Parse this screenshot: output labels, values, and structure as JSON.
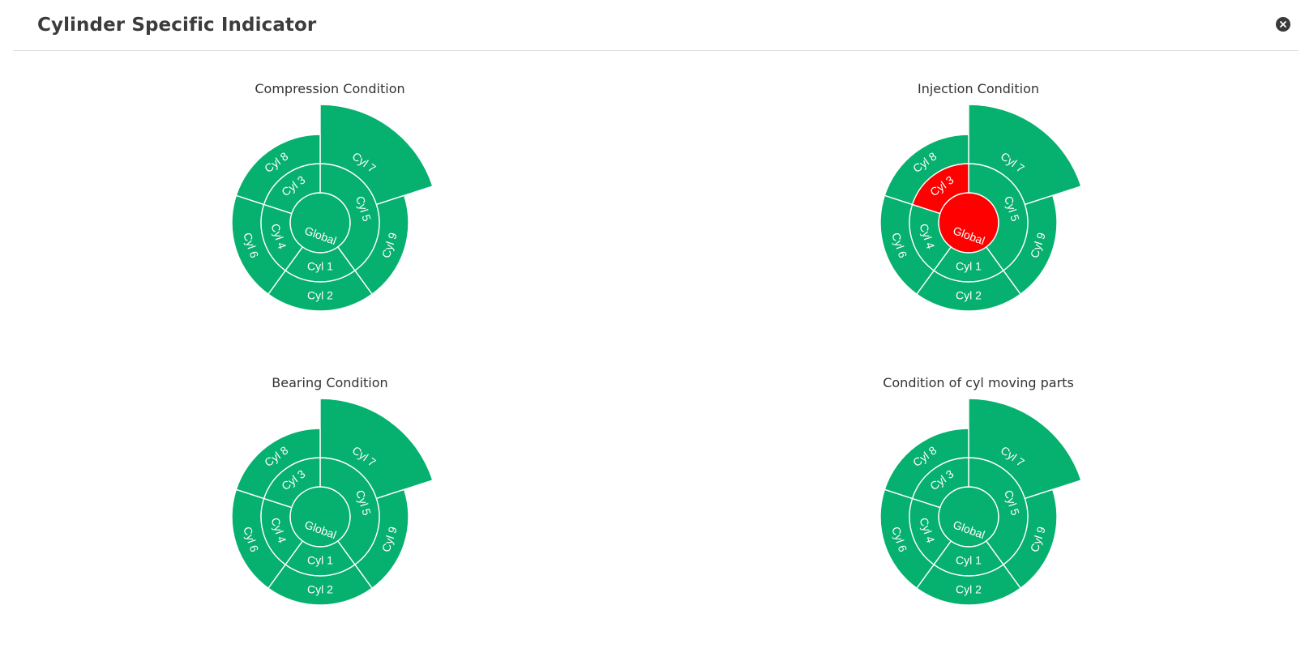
{
  "header": {
    "title": "Cylinder Specific Indicator",
    "close_icon": "close-circle-icon"
  },
  "colors": {
    "normal": "#06b06f",
    "alert": "#ff0000",
    "divider": "#ffffff"
  },
  "chart_data": [
    {
      "type": "sunburst",
      "title": "Compression Condition",
      "segments": [
        {
          "name": "Global",
          "ring": 0,
          "start_deg": 0,
          "end_deg": 360,
          "status": "normal"
        },
        {
          "name": "Cyl 5",
          "ring": 1,
          "start_deg": 0,
          "end_deg": 144,
          "status": "normal"
        },
        {
          "name": "Cyl 1",
          "ring": 1,
          "start_deg": 144,
          "end_deg": 216,
          "status": "normal"
        },
        {
          "name": "Cyl 4",
          "ring": 1,
          "start_deg": 216,
          "end_deg": 288,
          "status": "normal"
        },
        {
          "name": "Cyl 3",
          "ring": 1,
          "start_deg": 288,
          "end_deg": 360,
          "status": "normal"
        },
        {
          "name": "Cyl 7",
          "ring": 2,
          "start_deg": 0,
          "end_deg": 72,
          "status": "normal",
          "extended": true
        },
        {
          "name": "Cyl 9",
          "ring": 2,
          "start_deg": 72,
          "end_deg": 144,
          "status": "normal"
        },
        {
          "name": "Cyl 2",
          "ring": 2,
          "start_deg": 144,
          "end_deg": 216,
          "status": "normal"
        },
        {
          "name": "Cyl 6",
          "ring": 2,
          "start_deg": 216,
          "end_deg": 288,
          "status": "normal"
        },
        {
          "name": "Cyl 8",
          "ring": 2,
          "start_deg": 288,
          "end_deg": 360,
          "status": "normal"
        }
      ]
    },
    {
      "type": "sunburst",
      "title": "Injection Condition",
      "segments": [
        {
          "name": "Global",
          "ring": 0,
          "start_deg": 0,
          "end_deg": 360,
          "status": "alert"
        },
        {
          "name": "Cyl 5",
          "ring": 1,
          "start_deg": 0,
          "end_deg": 144,
          "status": "normal"
        },
        {
          "name": "Cyl 1",
          "ring": 1,
          "start_deg": 144,
          "end_deg": 216,
          "status": "normal"
        },
        {
          "name": "Cyl 4",
          "ring": 1,
          "start_deg": 216,
          "end_deg": 288,
          "status": "normal"
        },
        {
          "name": "Cyl 3",
          "ring": 1,
          "start_deg": 288,
          "end_deg": 360,
          "status": "alert"
        },
        {
          "name": "Cyl 7",
          "ring": 2,
          "start_deg": 0,
          "end_deg": 72,
          "status": "normal",
          "extended": true
        },
        {
          "name": "Cyl 9",
          "ring": 2,
          "start_deg": 72,
          "end_deg": 144,
          "status": "normal"
        },
        {
          "name": "Cyl 2",
          "ring": 2,
          "start_deg": 144,
          "end_deg": 216,
          "status": "normal"
        },
        {
          "name": "Cyl 6",
          "ring": 2,
          "start_deg": 216,
          "end_deg": 288,
          "status": "normal"
        },
        {
          "name": "Cyl 8",
          "ring": 2,
          "start_deg": 288,
          "end_deg": 360,
          "status": "normal"
        }
      ]
    },
    {
      "type": "sunburst",
      "title": "Bearing Condition",
      "segments": [
        {
          "name": "Global",
          "ring": 0,
          "start_deg": 0,
          "end_deg": 360,
          "status": "normal"
        },
        {
          "name": "Cyl 5",
          "ring": 1,
          "start_deg": 0,
          "end_deg": 144,
          "status": "normal"
        },
        {
          "name": "Cyl 1",
          "ring": 1,
          "start_deg": 144,
          "end_deg": 216,
          "status": "normal"
        },
        {
          "name": "Cyl 4",
          "ring": 1,
          "start_deg": 216,
          "end_deg": 288,
          "status": "normal"
        },
        {
          "name": "Cyl 3",
          "ring": 1,
          "start_deg": 288,
          "end_deg": 360,
          "status": "normal"
        },
        {
          "name": "Cyl 7",
          "ring": 2,
          "start_deg": 0,
          "end_deg": 72,
          "status": "normal",
          "extended": true
        },
        {
          "name": "Cyl 9",
          "ring": 2,
          "start_deg": 72,
          "end_deg": 144,
          "status": "normal"
        },
        {
          "name": "Cyl 2",
          "ring": 2,
          "start_deg": 144,
          "end_deg": 216,
          "status": "normal"
        },
        {
          "name": "Cyl 6",
          "ring": 2,
          "start_deg": 216,
          "end_deg": 288,
          "status": "normal"
        },
        {
          "name": "Cyl 8",
          "ring": 2,
          "start_deg": 288,
          "end_deg": 360,
          "status": "normal"
        }
      ]
    },
    {
      "type": "sunburst",
      "title": "Condition of cyl moving parts",
      "segments": [
        {
          "name": "Global",
          "ring": 0,
          "start_deg": 0,
          "end_deg": 360,
          "status": "normal"
        },
        {
          "name": "Cyl 5",
          "ring": 1,
          "start_deg": 0,
          "end_deg": 144,
          "status": "normal"
        },
        {
          "name": "Cyl 1",
          "ring": 1,
          "start_deg": 144,
          "end_deg": 216,
          "status": "normal"
        },
        {
          "name": "Cyl 4",
          "ring": 1,
          "start_deg": 216,
          "end_deg": 288,
          "status": "normal"
        },
        {
          "name": "Cyl 3",
          "ring": 1,
          "start_deg": 288,
          "end_deg": 360,
          "status": "normal"
        },
        {
          "name": "Cyl 7",
          "ring": 2,
          "start_deg": 0,
          "end_deg": 72,
          "status": "normal",
          "extended": true
        },
        {
          "name": "Cyl 9",
          "ring": 2,
          "start_deg": 72,
          "end_deg": 144,
          "status": "normal"
        },
        {
          "name": "Cyl 2",
          "ring": 2,
          "start_deg": 144,
          "end_deg": 216,
          "status": "normal"
        },
        {
          "name": "Cyl 6",
          "ring": 2,
          "start_deg": 216,
          "end_deg": 288,
          "status": "normal"
        },
        {
          "name": "Cyl 8",
          "ring": 2,
          "start_deg": 288,
          "end_deg": 360,
          "status": "normal"
        }
      ]
    }
  ]
}
